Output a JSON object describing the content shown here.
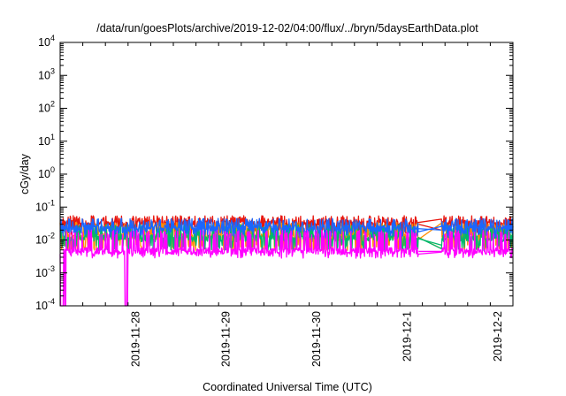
{
  "chart_data": {
    "type": "line",
    "title": "/data/run/goesPlots/archive/2019-12-02/04:00/flux/../bryn/5daysEarthData.plot",
    "xlabel": "Coordinated Universal Time (UTC)",
    "ylabel": "cGy/day",
    "y_scale": "log",
    "ylim": [
      0.0001,
      10000
    ],
    "xlim": [
      "2019-11-27T04:00",
      "2019-12-02T04:00"
    ],
    "x_ticks": [
      {
        "date": "2019-11-28T00:00",
        "label": "2019-11-28"
      },
      {
        "date": "2019-11-29T00:00",
        "label": "2019-11-29"
      },
      {
        "date": "2019-11-30T00:00",
        "label": "2019-11-30"
      },
      {
        "date": "2019-12-01T00:00",
        "label": "2019-12-1"
      },
      {
        "date": "2019-12-02T00:00",
        "label": "2019-12-2"
      }
    ],
    "y_ticks": [
      {
        "value": 0.0001,
        "base": "10",
        "exp": "-4"
      },
      {
        "value": 0.001,
        "base": "10",
        "exp": "-3"
      },
      {
        "value": 0.01,
        "base": "10",
        "exp": "-2"
      },
      {
        "value": 0.1,
        "base": "10",
        "exp": "-1"
      },
      {
        "value": 1,
        "base": "10",
        "exp": "0"
      },
      {
        "value": 10,
        "base": "10",
        "exp": "1"
      },
      {
        "value": 100,
        "base": "10",
        "exp": "2"
      },
      {
        "value": 1000,
        "base": "10",
        "exp": "3"
      },
      {
        "value": 10000,
        "base": "10",
        "exp": "4"
      }
    ],
    "grid": false,
    "gap": {
      "start": "2019-12-01T03:00",
      "end": "2019-12-01T09:00"
    },
    "series": [
      {
        "color": "#e8170f",
        "base": 0.03,
        "spike": 0.055,
        "dip": 0.018,
        "gap_value": 0.02
      },
      {
        "color": "#ff8c00",
        "base": 0.012,
        "spike": 0.035,
        "dip": 0.006,
        "gap_value": 0.0055
      },
      {
        "color": "#00b86b",
        "base": 0.011,
        "spike": 0.03,
        "dip": 0.006,
        "gap_value": 0.007
      },
      {
        "color": "#1a66ff",
        "base": 0.022,
        "spike": 0.045,
        "dip": 0.015,
        "gap_value": 0.02
      },
      {
        "color": "#ff00ff",
        "base": 0.0045,
        "spike": 0.02,
        "dip": 0.0035,
        "gap_value": 0.0045,
        "dropouts": [
          {
            "start": "2019-11-27T04:00",
            "end": "2019-11-27T05:30"
          },
          {
            "start": "2019-11-27T21:00",
            "end": "2019-11-27T22:00"
          }
        ]
      }
    ]
  }
}
